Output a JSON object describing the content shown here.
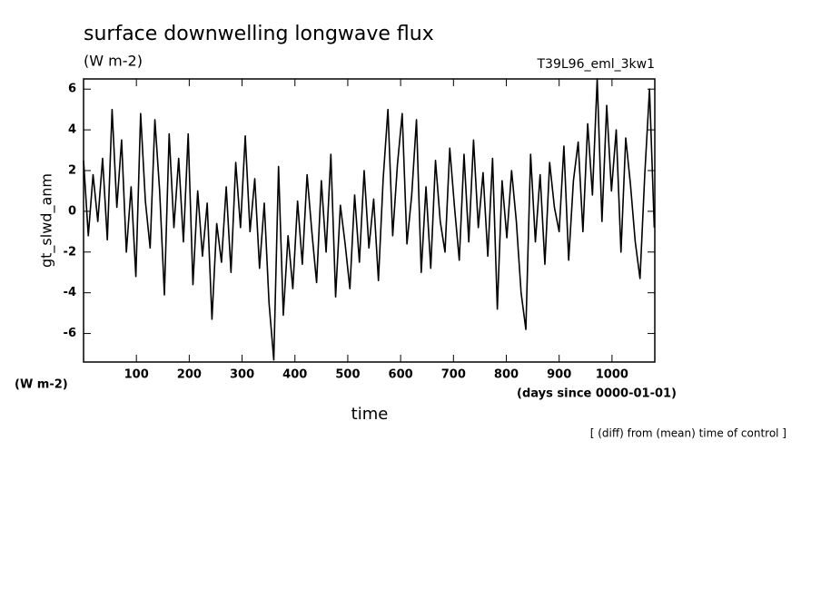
{
  "chart_data": {
    "type": "line",
    "title": "surface downwelling longwave flux",
    "subtitle": "(W m-2)",
    "annotation": "T39L96_eml_3kw1",
    "y_label": "gt_slwd_anm",
    "y_units": "(W m-2)",
    "x_label": "time",
    "x_units": "(days since 0000-01-01)",
    "note": "[ (diff) from (mean) time of control ]",
    "xlim": [
      0,
      1081
    ],
    "ylim": [
      -7.4,
      6.5
    ],
    "xticks": [
      100,
      200,
      300,
      400,
      500,
      600,
      700,
      800,
      900,
      1000
    ],
    "yticks": [
      -6,
      -4,
      -2,
      0,
      2,
      4,
      6
    ],
    "x": [
      0,
      9,
      18,
      27,
      36,
      45,
      54,
      63,
      72,
      81,
      90,
      99,
      108,
      117,
      126,
      135,
      144,
      153,
      162,
      171,
      180,
      189,
      198,
      207,
      216,
      225,
      234,
      243,
      252,
      261,
      270,
      279,
      288,
      297,
      306,
      315,
      324,
      333,
      342,
      351,
      360,
      369,
      378,
      387,
      396,
      405,
      414,
      423,
      432,
      441,
      450,
      459,
      468,
      477,
      486,
      495,
      504,
      513,
      522,
      531,
      540,
      549,
      558,
      567,
      576,
      585,
      594,
      603,
      612,
      621,
      630,
      639,
      648,
      657,
      666,
      675,
      684,
      693,
      702,
      711,
      720,
      729,
      738,
      747,
      756,
      765,
      774,
      783,
      792,
      801,
      810,
      819,
      828,
      837,
      846,
      855,
      864,
      873,
      882,
      891,
      900,
      909,
      918,
      927,
      936,
      945,
      954,
      963,
      972,
      981,
      990,
      999,
      1008,
      1017,
      1026,
      1035,
      1044,
      1053,
      1062,
      1071,
      1080
    ],
    "series": [
      {
        "color": "#000000",
        "values": [
          2.5,
          -1.2,
          1.8,
          -0.5,
          2.6,
          -1.4,
          5.0,
          0.2,
          3.5,
          -2.0,
          1.2,
          -3.2,
          4.8,
          0.5,
          -1.8,
          4.5,
          1.0,
          -4.1,
          3.8,
          -0.8,
          2.6,
          -1.5,
          3.8,
          -3.6,
          1.0,
          -2.2,
          0.4,
          -5.3,
          -0.6,
          -2.5,
          1.2,
          -3.0,
          2.4,
          -0.8,
          3.7,
          -1.0,
          1.6,
          -2.8,
          0.4,
          -4.5,
          -7.3,
          2.2,
          -5.1,
          -1.2,
          -3.8,
          0.5,
          -2.6,
          1.8,
          -1.0,
          -3.5,
          1.5,
          -2.0,
          2.8,
          -4.2,
          0.3,
          -1.6,
          -3.8,
          0.8,
          -2.5,
          2.0,
          -1.8,
          0.6,
          -3.4,
          1.6,
          5.0,
          -1.2,
          2.3,
          4.8,
          -1.6,
          0.8,
          4.5,
          -3.0,
          1.2,
          -2.8,
          2.5,
          -0.5,
          -2.0,
          3.1,
          0.2,
          -2.4,
          2.8,
          -1.5,
          3.5,
          -0.8,
          1.9,
          -2.2,
          2.6,
          -4.8,
          1.5,
          -1.3,
          2.0,
          -0.5,
          -4.0,
          -5.8,
          2.8,
          -1.5,
          1.8,
          -2.6,
          2.4,
          0.2,
          -1.0,
          3.2,
          -2.4,
          1.5,
          3.4,
          -1.0,
          4.3,
          0.8,
          6.5,
          -0.5,
          5.2,
          1.0,
          4.0,
          -2.0,
          3.6,
          1.3,
          -1.5,
          -3.3,
          1.8,
          6.0,
          -0.8
        ]
      }
    ]
  }
}
